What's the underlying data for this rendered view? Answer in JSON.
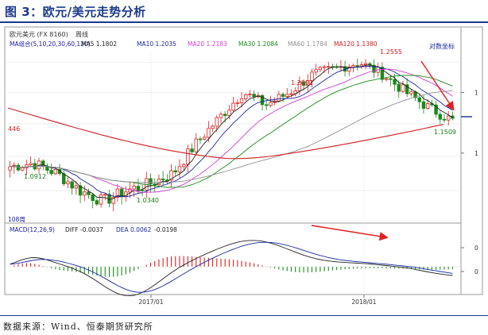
{
  "figure": {
    "title": "图 3：欧元/美元走势分析",
    "source": "数据来源：Wind、恒泰期货研究所"
  },
  "chart_data": [
    {
      "type": "candlestick",
      "header": {
        "symbol": "欧元美元 (FX 8160)",
        "period": "周线"
      },
      "ma_legend": [
        {
          "label": "MA组合(5,10,20,30,60,120)",
          "color": "#1a1aa0"
        },
        {
          "label": "MA5 1.1802",
          "color": "#222222"
        },
        {
          "label": "MA10 1.2035",
          "color": "#1a2a9c"
        },
        {
          "label": "MA20 1.2183",
          "color": "#d23fd2"
        },
        {
          "label": "MA30 1.2084",
          "color": "#1a8a1a"
        },
        {
          "label": "MA60 1.1784",
          "color": "#909090"
        },
        {
          "label": "MA120 1.1380",
          "color": "#d01e1e"
        }
      ],
      "scale_label": "对数坐标",
      "interval_label": "108周",
      "x_ticks": [
        "2017/01",
        "2018/01"
      ],
      "y_ticks": [
        "1"
      ],
      "annotations": [
        {
          "text": "1.2555",
          "color": "#d01e1e"
        },
        {
          "text": "1.2091",
          "color": "#d01e1e"
        },
        {
          "text": "1.1509",
          "color": "#1a7a1a"
        },
        {
          "text": "1.0912",
          "color": "#1a7a1a"
        },
        {
          "text": "1.0340",
          "color": "#1a7a1a"
        },
        {
          "text": "446",
          "color": "#d01e1e"
        }
      ],
      "close_path": [
        1.085,
        1.09,
        1.075,
        1.05,
        1.035,
        1.05,
        1.06,
        1.075,
        1.12,
        1.16,
        1.2,
        1.18,
        1.2,
        1.23,
        1.24,
        1.25,
        1.23,
        1.2,
        1.175,
        1.155
      ],
      "colors": {
        "up": "#e02020",
        "down": "#1a8a1a",
        "red_ma": "#d01e1e",
        "arrow": "#e02020"
      }
    },
    {
      "type": "macd",
      "legend": [
        {
          "label": "MACD(12,26,9)",
          "color": "#1a1aa0"
        },
        {
          "label": "DIFF -0.0037",
          "color": "#222222"
        },
        {
          "label": "DEA 0.0062",
          "color": "#1a2a9c"
        },
        {
          "label": "-0.0198",
          "color": "#222222"
        }
      ],
      "y_ticks": [
        "0",
        "0"
      ]
    }
  ]
}
